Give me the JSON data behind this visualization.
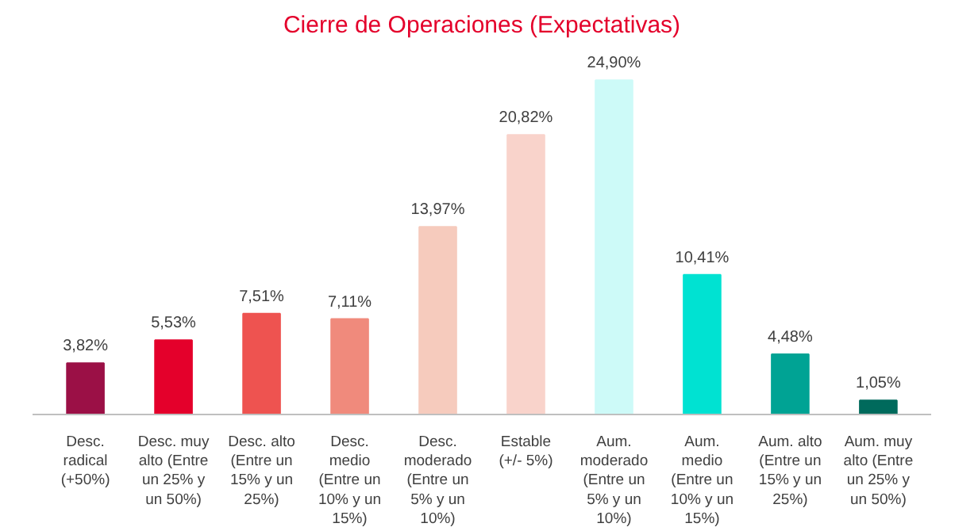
{
  "chart_data": {
    "type": "bar",
    "title": "Cierre de Operaciones (Expectativas)",
    "categories": [
      "Desc.\nradical\n(+50%)",
      "Desc. muy\nalto (Entre\nun 25% y\nun 50%)",
      "Desc. alto\n(Entre un\n15% y un\n25%)",
      "Desc.\nmedio\n(Entre un\n10% y un\n15%)",
      "Desc.\nmoderado\n(Entre un\n5% y un\n10%)",
      "Estable\n(+/- 5%)",
      "Aum.\nmoderado\n(Entre un\n5% y un\n10%)",
      "Aum.\nmedio\n(Entre un\n10% y un\n15%)",
      "Aum. alto\n(Entre un\n15% y un\n25%)",
      "Aum. muy\nalto (Entre\nun 25% y\nun 50%)"
    ],
    "values": [
      3.82,
      5.53,
      7.51,
      7.11,
      13.97,
      20.82,
      24.9,
      10.41,
      4.48,
      1.05
    ],
    "value_labels": [
      "3,82%",
      "5,53%",
      "7,51%",
      "7,11%",
      "13,97%",
      "20,82%",
      "24,90%",
      "10,41%",
      "4,48%",
      "1,05%"
    ],
    "colors": [
      "#9b1046",
      "#e4002b",
      "#ee5350",
      "#f08a7c",
      "#f6cbbd",
      "#f9d3cb",
      "#cdfaf8",
      "#00e2d2",
      "#00a394",
      "#006a5c"
    ],
    "grid": false
  }
}
